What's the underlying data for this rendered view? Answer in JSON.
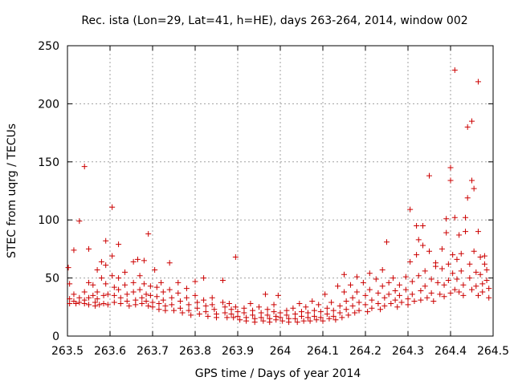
{
  "chart_data": {
    "type": "scatter",
    "title": "Rec. ista (Lon=29, Lat=41, h=HE), days 263-264, 2014, window 002",
    "xlabel": "GPS time / Days of year 2014",
    "ylabel": "STEC from uqrg / TECUs",
    "xlim": [
      263.5,
      264.5
    ],
    "ylim": [
      0,
      250
    ],
    "xticks": [
      263.5,
      263.6,
      263.7,
      263.8,
      263.9,
      264.0,
      264.1,
      264.2,
      264.3,
      264.4,
      264.5
    ],
    "xtick_labels": [
      "263.5",
      "263.6",
      "263.7",
      "263.8",
      "263.9",
      "264",
      "264.1",
      "264.2",
      "264.3",
      "264.4",
      "264.5"
    ],
    "yticks": [
      0,
      50,
      100,
      150,
      200,
      250
    ],
    "ytick_labels": [
      "0",
      "50",
      "100",
      "150",
      "200",
      "250"
    ],
    "grid": true,
    "marker": "+",
    "color": "#cc0000",
    "series": [
      {
        "name": "",
        "points": [
          [
            263.502,
            59
          ],
          [
            263.505,
            45
          ],
          [
            263.505,
            32
          ],
          [
            263.505,
            28
          ],
          [
            263.515,
            74
          ],
          [
            263.515,
            36
          ],
          [
            263.515,
            30
          ],
          [
            263.52,
            28
          ],
          [
            263.528,
            99
          ],
          [
            263.528,
            33
          ],
          [
            263.528,
            29
          ],
          [
            263.54,
            146
          ],
          [
            263.54,
            38
          ],
          [
            263.54,
            31
          ],
          [
            263.54,
            28
          ],
          [
            263.55,
            75
          ],
          [
            263.55,
            46
          ],
          [
            263.55,
            33
          ],
          [
            263.55,
            27
          ],
          [
            263.56,
            44
          ],
          [
            263.56,
            35
          ],
          [
            263.565,
            29
          ],
          [
            263.565,
            26
          ],
          [
            263.57,
            57
          ],
          [
            263.57,
            38
          ],
          [
            263.57,
            32
          ],
          [
            263.575,
            27
          ],
          [
            263.58,
            64
          ],
          [
            263.58,
            50
          ],
          [
            263.585,
            35
          ],
          [
            263.585,
            28
          ],
          [
            263.59,
            82
          ],
          [
            263.59,
            61
          ],
          [
            263.59,
            45
          ],
          [
            263.595,
            36
          ],
          [
            263.595,
            27
          ],
          [
            263.605,
            111
          ],
          [
            263.605,
            69
          ],
          [
            263.605,
            52
          ],
          [
            263.61,
            42
          ],
          [
            263.61,
            35
          ],
          [
            263.61,
            29
          ],
          [
            263.62,
            79
          ],
          [
            263.62,
            50
          ],
          [
            263.62,
            40
          ],
          [
            263.625,
            33
          ],
          [
            263.625,
            28
          ],
          [
            263.635,
            55
          ],
          [
            263.635,
            44
          ],
          [
            263.64,
            36
          ],
          [
            263.64,
            30
          ],
          [
            263.645,
            26
          ],
          [
            263.655,
            64
          ],
          [
            263.655,
            46
          ],
          [
            263.655,
            38
          ],
          [
            263.66,
            31
          ],
          [
            263.66,
            27
          ],
          [
            263.665,
            66
          ],
          [
            263.67,
            52
          ],
          [
            263.67,
            40
          ],
          [
            263.675,
            33
          ],
          [
            263.675,
            28
          ],
          [
            263.68,
            65
          ],
          [
            263.68,
            45
          ],
          [
            263.685,
            36
          ],
          [
            263.685,
            30
          ],
          [
            263.69,
            26
          ],
          [
            263.69,
            88
          ],
          [
            263.695,
            43
          ],
          [
            263.695,
            35
          ],
          [
            263.7,
            29
          ],
          [
            263.7,
            25
          ],
          [
            263.705,
            57
          ],
          [
            263.71,
            42
          ],
          [
            263.71,
            34
          ],
          [
            263.715,
            28
          ],
          [
            263.715,
            23
          ],
          [
            263.72,
            46
          ],
          [
            263.725,
            38
          ],
          [
            263.725,
            31
          ],
          [
            263.73,
            26
          ],
          [
            263.73,
            22
          ],
          [
            263.74,
            63
          ],
          [
            263.74,
            40
          ],
          [
            263.745,
            33
          ],
          [
            263.745,
            27
          ],
          [
            263.75,
            22
          ],
          [
            263.76,
            46
          ],
          [
            263.76,
            37
          ],
          [
            263.765,
            30
          ],
          [
            263.765,
            24
          ],
          [
            263.77,
            20
          ],
          [
            263.78,
            41
          ],
          [
            263.78,
            33
          ],
          [
            263.785,
            27
          ],
          [
            263.785,
            22
          ],
          [
            263.79,
            18
          ],
          [
            263.8,
            47
          ],
          [
            263.8,
            35
          ],
          [
            263.805,
            29
          ],
          [
            263.805,
            24
          ],
          [
            263.81,
            19
          ],
          [
            263.82,
            50
          ],
          [
            263.82,
            31
          ],
          [
            263.825,
            26
          ],
          [
            263.825,
            21
          ],
          [
            263.83,
            17
          ],
          [
            263.84,
            33
          ],
          [
            263.84,
            27
          ],
          [
            263.845,
            23
          ],
          [
            263.85,
            19
          ],
          [
            263.85,
            16
          ],
          [
            263.865,
            48
          ],
          [
            263.865,
            29
          ],
          [
            263.87,
            25
          ],
          [
            263.87,
            20
          ],
          [
            263.875,
            16
          ],
          [
            263.88,
            28
          ],
          [
            263.885,
            23
          ],
          [
            263.885,
            19
          ],
          [
            263.89,
            16
          ],
          [
            263.895,
            68
          ],
          [
            263.895,
            25
          ],
          [
            263.9,
            21
          ],
          [
            263.9,
            17
          ],
          [
            263.905,
            14
          ],
          [
            263.915,
            24
          ],
          [
            263.915,
            20
          ],
          [
            263.92,
            16
          ],
          [
            263.92,
            13
          ],
          [
            263.93,
            28
          ],
          [
            263.935,
            22
          ],
          [
            263.935,
            18
          ],
          [
            263.94,
            15
          ],
          [
            263.94,
            12
          ],
          [
            263.95,
            25
          ],
          [
            263.955,
            20
          ],
          [
            263.955,
            16
          ],
          [
            263.96,
            13
          ],
          [
            263.965,
            36
          ],
          [
            263.97,
            23
          ],
          [
            263.97,
            18
          ],
          [
            263.975,
            15
          ],
          [
            263.975,
            12
          ],
          [
            263.985,
            27
          ],
          [
            263.985,
            21
          ],
          [
            263.99,
            17
          ],
          [
            263.99,
            14
          ],
          [
            263.995,
            35
          ],
          [
            264.0,
            20
          ],
          [
            264.0,
            16
          ],
          [
            264.005,
            13
          ],
          [
            264.015,
            22
          ],
          [
            264.015,
            18
          ],
          [
            264.02,
            15
          ],
          [
            264.02,
            12
          ],
          [
            264.03,
            24
          ],
          [
            264.035,
            19
          ],
          [
            264.035,
            15
          ],
          [
            264.04,
            12
          ],
          [
            264.045,
            28
          ],
          [
            264.05,
            21
          ],
          [
            264.05,
            17
          ],
          [
            264.055,
            13
          ],
          [
            264.06,
            25
          ],
          [
            264.065,
            20
          ],
          [
            264.065,
            16
          ],
          [
            264.07,
            13
          ],
          [
            264.075,
            30
          ],
          [
            264.08,
            22
          ],
          [
            264.08,
            17
          ],
          [
            264.085,
            14
          ],
          [
            264.09,
            27
          ],
          [
            264.095,
            21
          ],
          [
            264.095,
            16
          ],
          [
            264.1,
            13
          ],
          [
            264.105,
            36
          ],
          [
            264.11,
            24
          ],
          [
            264.11,
            19
          ],
          [
            264.115,
            15
          ],
          [
            264.12,
            29
          ],
          [
            264.125,
            22
          ],
          [
            264.125,
            17
          ],
          [
            264.13,
            14
          ],
          [
            264.135,
            43
          ],
          [
            264.14,
            26
          ],
          [
            264.14,
            20
          ],
          [
            264.145,
            16
          ],
          [
            264.15,
            53
          ],
          [
            264.15,
            38
          ],
          [
            264.155,
            30
          ],
          [
            264.155,
            23
          ],
          [
            264.16,
            18
          ],
          [
            264.165,
            44
          ],
          [
            264.17,
            33
          ],
          [
            264.17,
            26
          ],
          [
            264.175,
            20
          ],
          [
            264.18,
            51
          ],
          [
            264.18,
            38
          ],
          [
            264.185,
            29
          ],
          [
            264.185,
            22
          ],
          [
            264.195,
            46
          ],
          [
            264.2,
            35
          ],
          [
            264.2,
            27
          ],
          [
            264.205,
            21
          ],
          [
            264.21,
            54
          ],
          [
            264.21,
            40
          ],
          [
            264.215,
            31
          ],
          [
            264.215,
            24
          ],
          [
            264.225,
            49
          ],
          [
            264.23,
            37
          ],
          [
            264.23,
            28
          ],
          [
            264.235,
            23
          ],
          [
            264.24,
            57
          ],
          [
            264.24,
            43
          ],
          [
            264.245,
            33
          ],
          [
            264.245,
            26
          ],
          [
            264.25,
            81
          ],
          [
            264.255,
            46
          ],
          [
            264.255,
            36
          ],
          [
            264.26,
            28
          ],
          [
            264.265,
            50
          ],
          [
            264.27,
            39
          ],
          [
            264.27,
            31
          ],
          [
            264.275,
            25
          ],
          [
            264.28,
            44
          ],
          [
            264.28,
            35
          ],
          [
            264.285,
            29
          ],
          [
            264.295,
            51
          ],
          [
            264.295,
            40
          ],
          [
            264.3,
            32
          ],
          [
            264.3,
            27
          ],
          [
            264.305,
            109
          ],
          [
            264.305,
            64
          ],
          [
            264.31,
            47
          ],
          [
            264.31,
            36
          ],
          [
            264.315,
            30
          ],
          [
            264.32,
            95
          ],
          [
            264.32,
            70
          ],
          [
            264.325,
            83
          ],
          [
            264.325,
            52
          ],
          [
            264.33,
            39
          ],
          [
            264.33,
            31
          ],
          [
            264.335,
            95
          ],
          [
            264.335,
            78
          ],
          [
            264.34,
            56
          ],
          [
            264.34,
            43
          ],
          [
            264.345,
            33
          ],
          [
            264.35,
            138
          ],
          [
            264.35,
            73
          ],
          [
            264.355,
            49
          ],
          [
            264.355,
            37
          ],
          [
            264.36,
            30
          ],
          [
            264.365,
            63
          ],
          [
            264.365,
            60
          ],
          [
            264.37,
            46
          ],
          [
            264.375,
            36
          ],
          [
            264.38,
            75
          ],
          [
            264.38,
            58
          ],
          [
            264.385,
            44
          ],
          [
            264.385,
            34
          ],
          [
            264.39,
            101
          ],
          [
            264.39,
            89
          ],
          [
            264.395,
            62
          ],
          [
            264.395,
            48
          ],
          [
            264.4,
            37
          ],
          [
            264.4,
            145
          ],
          [
            264.4,
            134
          ],
          [
            264.405,
            70
          ],
          [
            264.405,
            54
          ],
          [
            264.41,
            40
          ],
          [
            264.41,
            229
          ],
          [
            264.41,
            102
          ],
          [
            264.415,
            66
          ],
          [
            264.415,
            49
          ],
          [
            264.42,
            38
          ],
          [
            264.42,
            87
          ],
          [
            264.425,
            71
          ],
          [
            264.425,
            56
          ],
          [
            264.43,
            44
          ],
          [
            264.43,
            35
          ],
          [
            264.435,
            90
          ],
          [
            264.435,
            102
          ],
          [
            264.44,
            119
          ],
          [
            264.44,
            180
          ],
          [
            264.445,
            62
          ],
          [
            264.445,
            50
          ],
          [
            264.45,
            40
          ],
          [
            264.45,
            185
          ],
          [
            264.45,
            134
          ],
          [
            264.455,
            127
          ],
          [
            264.455,
            73
          ],
          [
            264.46,
            55
          ],
          [
            264.46,
            43
          ],
          [
            264.465,
            35
          ],
          [
            264.465,
            219
          ],
          [
            264.465,
            90
          ],
          [
            264.47,
            68
          ],
          [
            264.47,
            53
          ],
          [
            264.475,
            45
          ],
          [
            264.475,
            38
          ],
          [
            264.48,
            69
          ],
          [
            264.48,
            62
          ],
          [
            264.485,
            57
          ],
          [
            264.485,
            48
          ],
          [
            264.49,
            41
          ],
          [
            264.49,
            33
          ]
        ]
      }
    ]
  }
}
